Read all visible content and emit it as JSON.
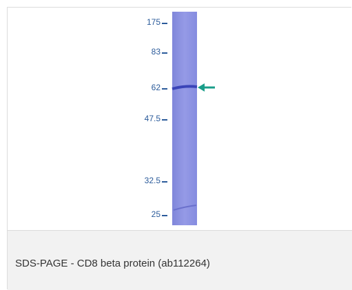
{
  "figure": {
    "markers": [
      "175",
      "83",
      "62",
      "47.5",
      "32.5",
      "25"
    ],
    "caption": "SDS-PAGE - CD8 beta protein (ab112264)"
  }
}
